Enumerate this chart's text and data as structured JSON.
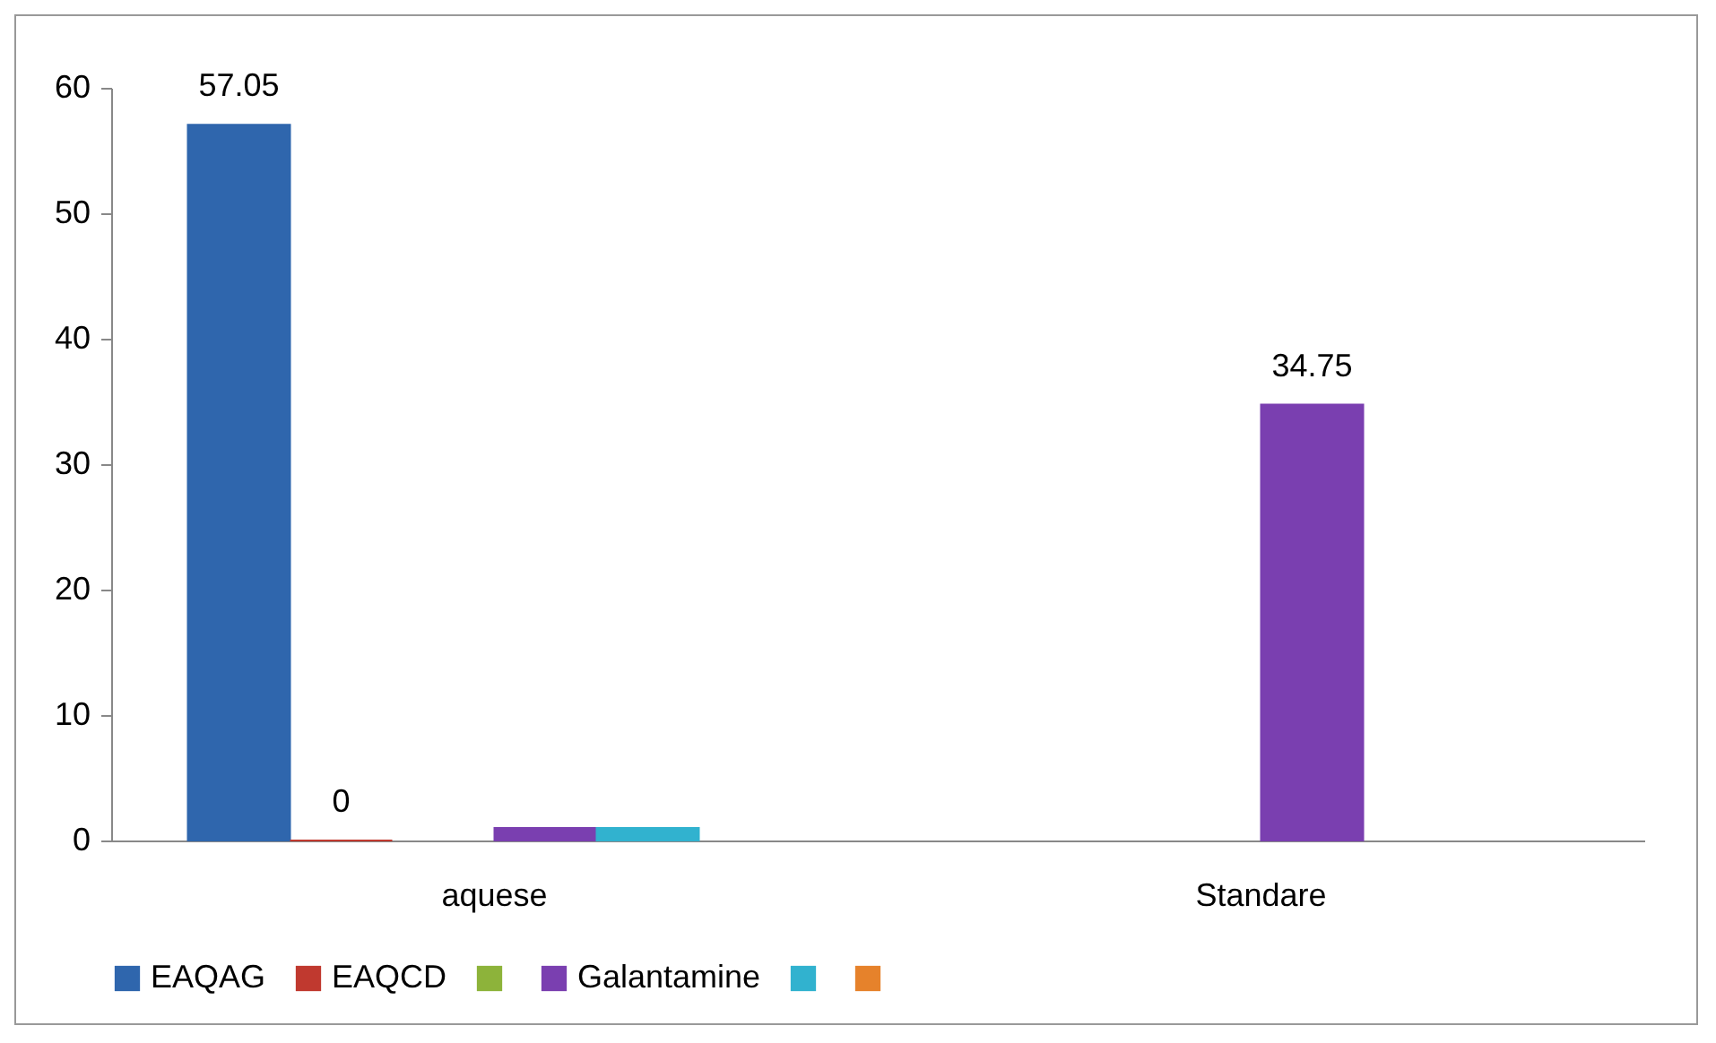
{
  "chart_data": {
    "type": "bar",
    "categories": [
      "aquese",
      "Standare"
    ],
    "series": [
      {
        "name": "EAQAG",
        "color": "#2f66ad",
        "values": [
          57.05,
          null
        ],
        "value_labels": [
          "57.05",
          null
        ]
      },
      {
        "name": "EAQCD",
        "color": "#c0392f",
        "values": [
          0,
          null
        ],
        "value_labels": [
          "0",
          null
        ]
      },
      {
        "color": "#8db33a",
        "values": [
          null,
          null
        ]
      },
      {
        "name": "Galantamine",
        "color": "#7a3fb0",
        "values": [
          1,
          34.75
        ],
        "value_labels": [
          null,
          "34.75"
        ]
      },
      {
        "color": "#31b2cf",
        "values": [
          1,
          null
        ]
      },
      {
        "color": "#e6822b",
        "values": [
          null,
          null
        ]
      }
    ],
    "ylim": [
      0,
      60
    ],
    "yticks": [
      0,
      10,
      20,
      30,
      40,
      50,
      60
    ],
    "grid": false,
    "legend": "bottom"
  }
}
